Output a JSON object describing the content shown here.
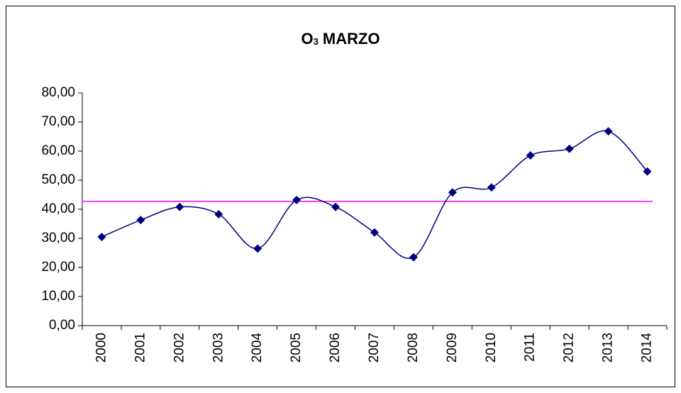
{
  "chart_data": {
    "type": "line",
    "title_main": "O",
    "title_sub": "3",
    "title_rest": " MARZO",
    "categories": [
      "2000",
      "2001",
      "2002",
      "2003",
      "2004",
      "2005",
      "2006",
      "2007",
      "2008",
      "2009",
      "2010",
      "2011",
      "2012",
      "2013",
      "2014"
    ],
    "series": [
      {
        "color": "#000080",
        "values": [
          30.5,
          36.3,
          40.8,
          38.3,
          26.5,
          43.2,
          40.8,
          32.0,
          23.5,
          45.8,
          47.5,
          58.5,
          60.8,
          66.8,
          53.0
        ]
      }
    ],
    "reference_line": {
      "value": 42.7,
      "color": "#ff00ff"
    },
    "smooth": true,
    "ylim": [
      0,
      80
    ],
    "yticks": [
      {
        "value": 0,
        "label": "0,00"
      },
      {
        "value": 10,
        "label": "10,00"
      },
      {
        "value": 20,
        "label": "20,00"
      },
      {
        "value": 30,
        "label": "30,00"
      },
      {
        "value": 40,
        "label": "40,00"
      },
      {
        "value": 50,
        "label": "50,00"
      },
      {
        "value": 60,
        "label": "60,00"
      },
      {
        "value": 70,
        "label": "70,00"
      },
      {
        "value": 80,
        "label": "80,00"
      }
    ],
    "grid": false
  }
}
